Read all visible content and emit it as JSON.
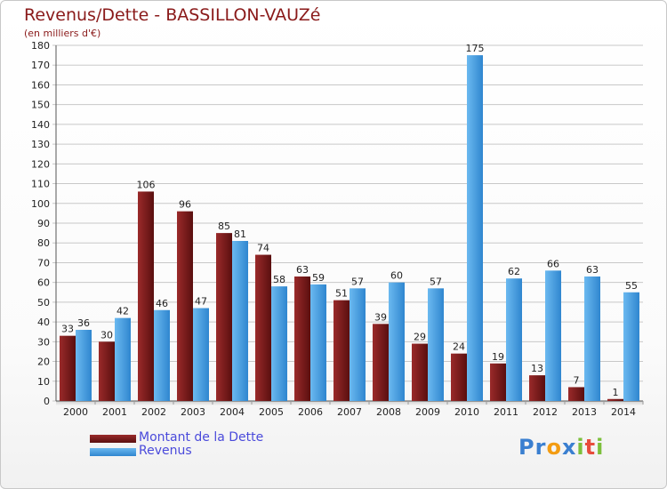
{
  "title": "Revenus/Dette - BASSILLON-VAUZé",
  "subtitle": "(en milliers d'€)",
  "logo": {
    "letters": [
      "P",
      "r",
      "o",
      "x",
      "i",
      "t",
      "i"
    ],
    "colors": [
      "#3a7fd0",
      "#3a7fd0",
      "#f39c12",
      "#3a7fd0",
      "#7cbf3b",
      "#e74c3c",
      "#7cbf3b"
    ]
  },
  "chart_data": {
    "type": "bar",
    "categories": [
      "2000",
      "2001",
      "2002",
      "2003",
      "2004",
      "2005",
      "2006",
      "2007",
      "2008",
      "2009",
      "2010",
      "2011",
      "2012",
      "2013",
      "2014"
    ],
    "series": [
      {
        "name": "Montant de la Dette",
        "color": "#7b1b1b",
        "values": [
          33,
          30,
          106,
          96,
          85,
          74,
          63,
          51,
          39,
          29,
          24,
          19,
          13,
          7,
          1
        ]
      },
      {
        "name": "Revenus",
        "color": "#4fa6e6",
        "values": [
          36,
          42,
          46,
          47,
          81,
          58,
          59,
          57,
          60,
          57,
          175,
          62,
          66,
          63,
          55
        ]
      }
    ],
    "ylim": [
      0,
      180
    ],
    "yticks": [
      0,
      10,
      20,
      30,
      40,
      50,
      60,
      70,
      80,
      90,
      100,
      110,
      120,
      130,
      140,
      150,
      160,
      170,
      180
    ],
    "grid": true,
    "legend_position": "bottom-left"
  }
}
